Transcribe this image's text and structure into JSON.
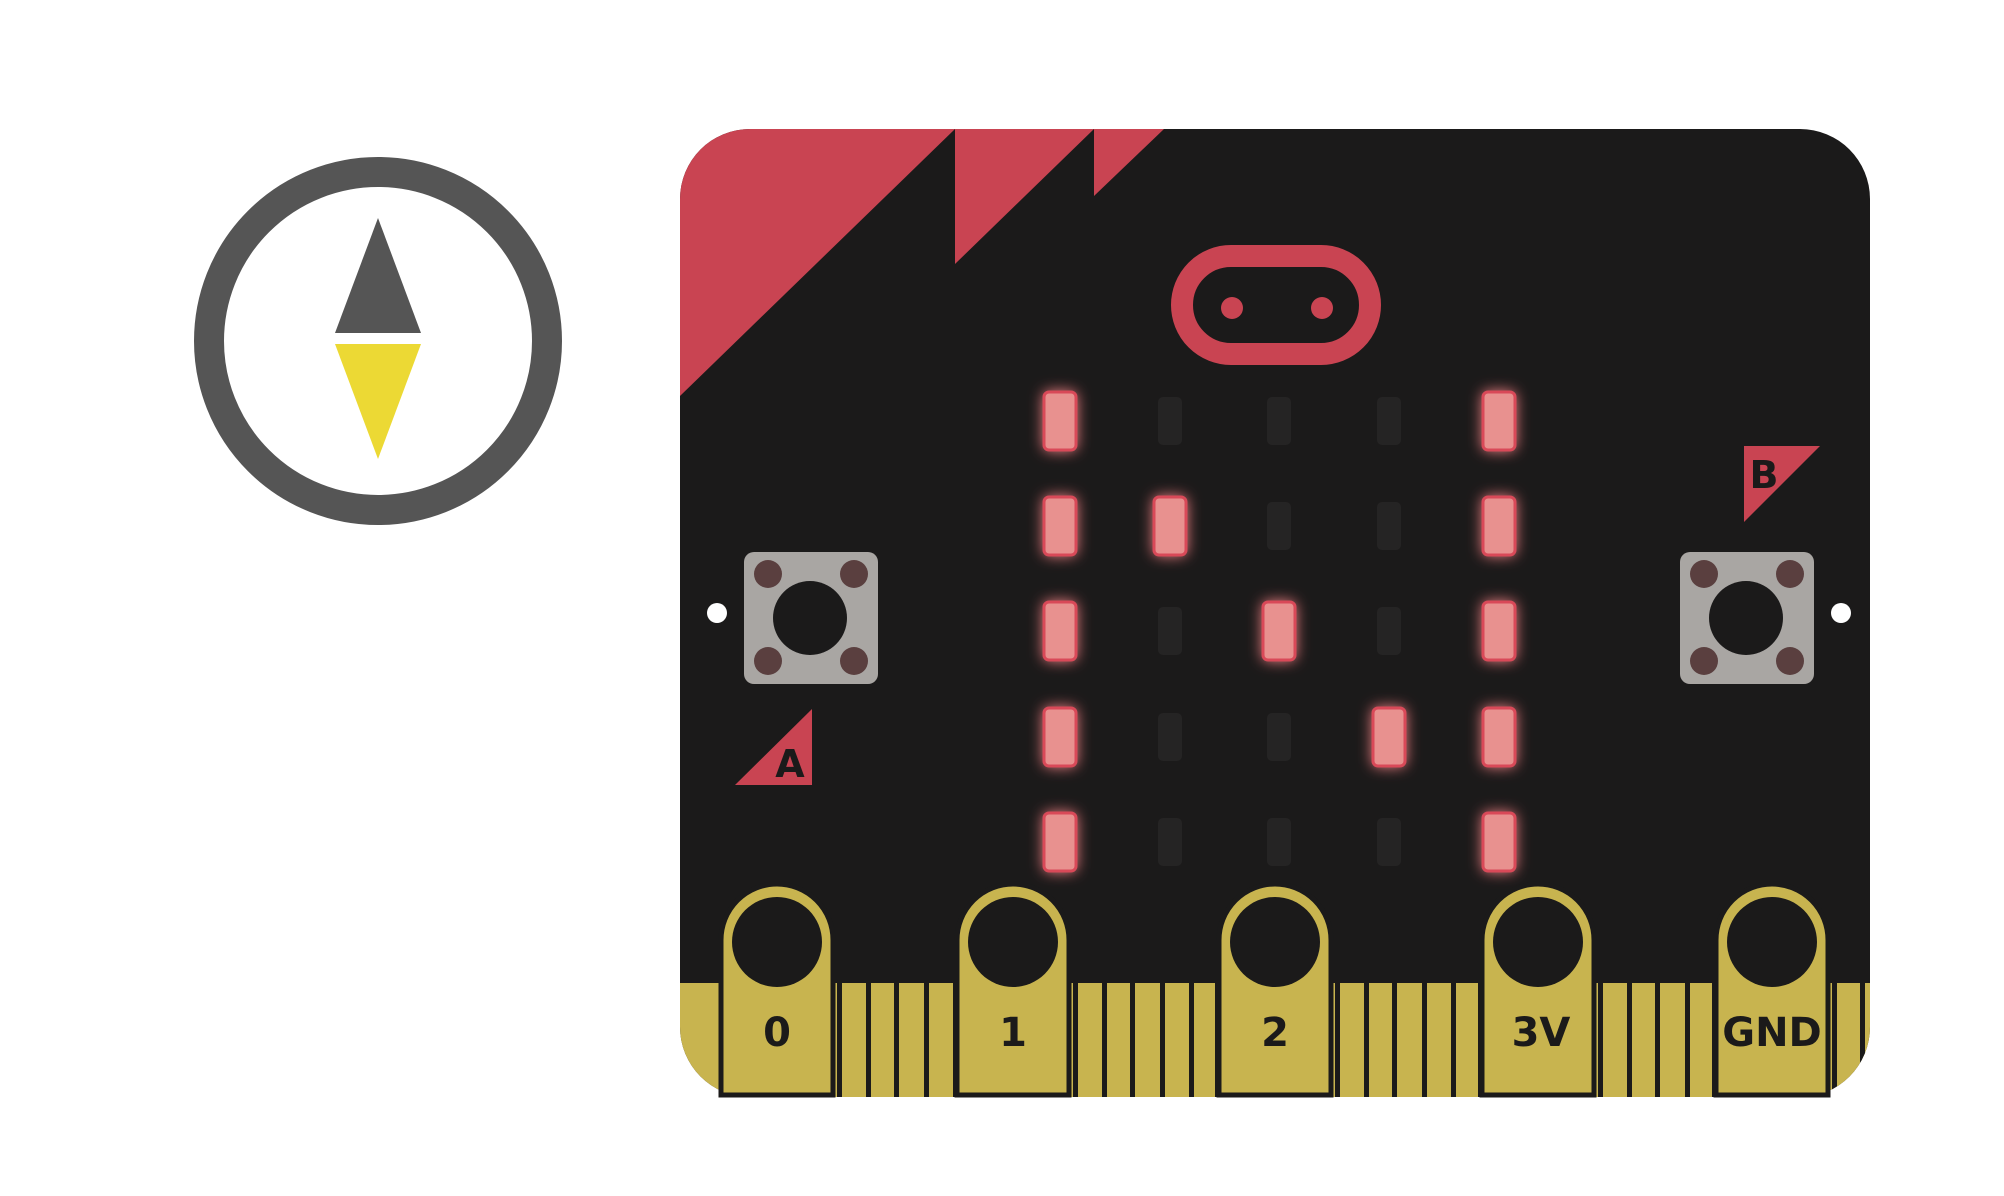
{
  "colors": {
    "board": "#1b1a1a",
    "accent_red": "#c94452",
    "gold": "#c8b44f",
    "led_on": "#e8918f",
    "led_off": "#252424",
    "button_body": "#a9a6a3",
    "compass_ring": "#555555",
    "compass_north": "#555555",
    "compass_south": "#ecd934"
  },
  "compass": {
    "icon": "compass-icon"
  },
  "buttons": {
    "a_label": "A",
    "b_label": "B"
  },
  "led_matrix": [
    [
      1,
      0,
      0,
      0,
      1
    ],
    [
      1,
      1,
      0,
      0,
      1
    ],
    [
      1,
      0,
      1,
      0,
      1
    ],
    [
      1,
      0,
      0,
      1,
      1
    ],
    [
      1,
      0,
      0,
      0,
      1
    ]
  ],
  "pins": {
    "p0": "0",
    "p1": "1",
    "p2": "2",
    "p3v": "3V",
    "gnd": "GND"
  }
}
